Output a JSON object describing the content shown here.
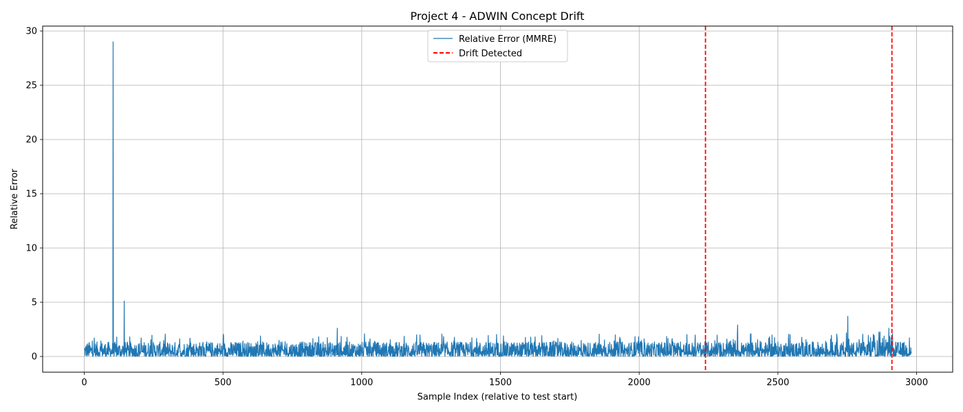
{
  "chart_data": {
    "type": "line",
    "title": "Project 4 - ADWIN Concept Drift",
    "xlabel": "Sample Index (relative to test start)",
    "ylabel": "Relative Error",
    "xlim": [
      -150,
      3130
    ],
    "ylim": [
      -1.45,
      30.45
    ],
    "xticks": [
      0,
      500,
      1000,
      1500,
      2000,
      2500,
      3000
    ],
    "yticks": [
      0,
      5,
      10,
      15,
      20,
      25,
      30
    ],
    "grid": true,
    "legend_position": "top-center",
    "series": [
      {
        "name": "Relative Error (MMRE)",
        "color": "#1f77b4",
        "n_samples": 2982,
        "baseline_range": [
          0.0,
          2.5
        ],
        "spikes": [
          {
            "x": 104,
            "y": 29.0
          },
          {
            "x": 144,
            "y": 5.1
          },
          {
            "x": 2752,
            "y": 3.7
          },
          {
            "x": 2355,
            "y": 2.9
          },
          {
            "x": 2900,
            "y": 2.6
          },
          {
            "x": 912,
            "y": 2.6
          }
        ]
      }
    ],
    "vlines": [
      {
        "name": "Drift Detected",
        "color": "#ff0000",
        "style": "dashed",
        "x": [
          2239,
          2911
        ]
      }
    ]
  }
}
